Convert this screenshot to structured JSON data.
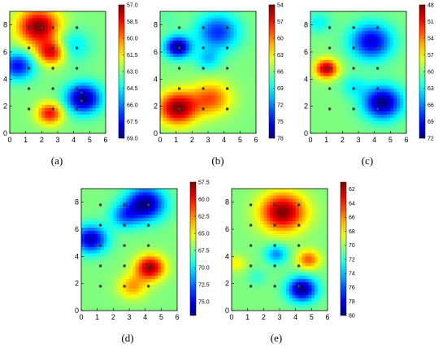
{
  "chart_data": [
    {
      "type": "heatmap",
      "label": "(a)",
      "xlim": [
        0,
        6
      ],
      "ylim": [
        0,
        9
      ],
      "xticks": [
        "0",
        "1",
        "2",
        "3",
        "4",
        "5",
        "6"
      ],
      "yticks": [
        "0",
        "2",
        "4",
        "6",
        "8"
      ],
      "colorbar_ticks": [
        "57.0",
        "58.5",
        "60.0",
        "61.5",
        "63.0",
        "64.5",
        "66.0",
        "67.5",
        "69.0"
      ],
      "colorbar_range": [
        57.0,
        69.0
      ],
      "colormap_reversed": true,
      "sensor_points": [
        [
          1.2,
          7.8
        ],
        [
          2.0,
          7.8
        ],
        [
          2.7,
          7.8
        ],
        [
          4.2,
          7.8
        ],
        [
          1.2,
          6.3
        ],
        [
          2.7,
          6.3
        ],
        [
          4.2,
          6.3
        ],
        [
          1.2,
          4.8
        ],
        [
          2.7,
          4.8
        ],
        [
          4.2,
          4.8
        ],
        [
          1.2,
          3.3
        ],
        [
          2.7,
          3.3
        ],
        [
          4.2,
          3.3
        ],
        [
          1.2,
          1.8
        ],
        [
          2.7,
          1.8
        ],
        [
          4.2,
          1.8
        ],
        [
          4.5,
          2.4
        ],
        [
          4.5,
          3.0
        ]
      ],
      "features": [
        {
          "x": 1.8,
          "y": 7.9,
          "value": 57.0,
          "radius": 1.3
        },
        {
          "x": 2.6,
          "y": 6.0,
          "value": 58.0,
          "radius": 0.9
        },
        {
          "x": 2.5,
          "y": 1.5,
          "value": 58.5,
          "radius": 0.8
        },
        {
          "x": 4.6,
          "y": 2.6,
          "value": 69.0,
          "radius": 1.1
        },
        {
          "x": 0.5,
          "y": 5.0,
          "value": 67.5,
          "radius": 1.0
        },
        {
          "x": 3.8,
          "y": 6.5,
          "value": 65.0,
          "radius": 1.2
        }
      ]
    },
    {
      "type": "heatmap",
      "label": "(b)",
      "xlim": [
        0,
        6
      ],
      "ylim": [
        0,
        9
      ],
      "xticks": [
        "0",
        "1",
        "2",
        "3",
        "4",
        "5",
        "6"
      ],
      "yticks": [
        "0",
        "2",
        "4",
        "6",
        "8"
      ],
      "colorbar_ticks": [
        "54",
        "57",
        "60",
        "63",
        "66",
        "69",
        "72",
        "75",
        "78"
      ],
      "colorbar_range": [
        54,
        78
      ],
      "colormap_reversed": true,
      "sensor_points": [
        [
          1.2,
          7.8
        ],
        [
          2.7,
          7.8
        ],
        [
          4.2,
          7.8
        ],
        [
          1.2,
          6.3
        ],
        [
          2.7,
          6.3
        ],
        [
          4.2,
          6.3
        ],
        [
          1.2,
          4.8
        ],
        [
          2.7,
          4.8
        ],
        [
          4.2,
          4.8
        ],
        [
          1.2,
          3.3
        ],
        [
          2.7,
          3.3
        ],
        [
          4.2,
          3.3
        ],
        [
          1.2,
          1.8
        ],
        [
          2.7,
          1.8
        ],
        [
          4.2,
          1.8
        ]
      ],
      "features": [
        {
          "x": 1.1,
          "y": 1.9,
          "value": 54,
          "radius": 1.2
        },
        {
          "x": 3.2,
          "y": 2.6,
          "value": 59,
          "radius": 1.2
        },
        {
          "x": 1.1,
          "y": 6.4,
          "value": 78,
          "radius": 0.8
        },
        {
          "x": 3.6,
          "y": 7.5,
          "value": 74,
          "radius": 1.3
        },
        {
          "x": 3.0,
          "y": 5.5,
          "value": 70,
          "radius": 0.8
        },
        {
          "x": 0.5,
          "y": 8.5,
          "value": 67,
          "radius": 0.7
        }
      ]
    },
    {
      "type": "heatmap",
      "label": "(c)",
      "xlim": [
        0,
        6
      ],
      "ylim": [
        0,
        9
      ],
      "xticks": [
        "0",
        "1",
        "2",
        "3",
        "4",
        "5",
        "6"
      ],
      "yticks": [
        "0",
        "2",
        "4",
        "6",
        "8"
      ],
      "colorbar_ticks": [
        "48",
        "51",
        "54",
        "57",
        "60",
        "63",
        "66",
        "69",
        "72"
      ],
      "colorbar_range": [
        48,
        72
      ],
      "colormap_reversed": true,
      "sensor_points": [
        [
          1.2,
          7.8
        ],
        [
          2.7,
          7.8
        ],
        [
          4.2,
          7.8
        ],
        [
          1.2,
          6.3
        ],
        [
          2.7,
          6.3
        ],
        [
          4.2,
          6.3
        ],
        [
          1.2,
          4.8
        ],
        [
          2.7,
          4.8
        ],
        [
          4.2,
          4.8
        ],
        [
          1.2,
          3.3
        ],
        [
          2.7,
          3.3
        ],
        [
          4.2,
          3.3
        ],
        [
          1.2,
          1.8
        ],
        [
          2.7,
          1.8
        ],
        [
          4.2,
          1.8
        ]
      ],
      "features": [
        {
          "x": 1.0,
          "y": 4.8,
          "value": 49,
          "radius": 0.7
        },
        {
          "x": 4.5,
          "y": 2.3,
          "value": 72,
          "radius": 1.2
        },
        {
          "x": 3.8,
          "y": 6.8,
          "value": 70,
          "radius": 1.3
        },
        {
          "x": 0.5,
          "y": 8.2,
          "value": 63,
          "radius": 0.8
        },
        {
          "x": 2.7,
          "y": 3.5,
          "value": 63,
          "radius": 0.8
        }
      ]
    },
    {
      "type": "heatmap",
      "label": "(d)",
      "xlim": [
        0,
        6
      ],
      "ylim": [
        0,
        9
      ],
      "xticks": [
        "0",
        "1",
        "2",
        "3",
        "4",
        "5",
        "6"
      ],
      "yticks": [
        "0",
        "2",
        "4",
        "6",
        "8"
      ],
      "colorbar_ticks": [
        "57.5",
        "60.0",
        "62.5",
        "65.0",
        "67.5",
        "70.0",
        "72.5",
        "75.0"
      ],
      "colorbar_range": [
        57.5,
        77.0
      ],
      "colormap_reversed": true,
      "sensor_points": [
        [
          1.2,
          7.8
        ],
        [
          2.7,
          7.8
        ],
        [
          4.2,
          7.8
        ],
        [
          1.2,
          6.3
        ],
        [
          2.7,
          6.3
        ],
        [
          4.2,
          6.3
        ],
        [
          1.2,
          4.8
        ],
        [
          2.7,
          4.8
        ],
        [
          4.2,
          4.8
        ],
        [
          1.2,
          3.3
        ],
        [
          2.7,
          3.3
        ],
        [
          4.2,
          3.3
        ],
        [
          1.2,
          1.8
        ],
        [
          2.7,
          1.8
        ],
        [
          4.2,
          1.8
        ]
      ],
      "features": [
        {
          "x": 4.3,
          "y": 3.2,
          "value": 58,
          "radius": 0.9
        },
        {
          "x": 3.2,
          "y": 1.8,
          "value": 63,
          "radius": 0.9
        },
        {
          "x": 4.0,
          "y": 7.9,
          "value": 77,
          "radius": 1.2
        },
        {
          "x": 0.6,
          "y": 5.3,
          "value": 76,
          "radius": 1.0
        },
        {
          "x": 2.7,
          "y": 7.0,
          "value": 72,
          "radius": 0.9
        }
      ]
    },
    {
      "type": "heatmap",
      "label": "(e)",
      "xlim": [
        0,
        6
      ],
      "ylim": [
        0,
        9
      ],
      "xticks": [
        "0",
        "1",
        "2",
        "3",
        "4",
        "5",
        "6"
      ],
      "yticks": [
        "0",
        "2",
        "4",
        "6",
        "8"
      ],
      "colorbar_ticks": [
        "62",
        "64",
        "66",
        "68",
        "70",
        "72",
        "74",
        "76",
        "78",
        "80"
      ],
      "colorbar_range": [
        61,
        80
      ],
      "colormap_reversed": true,
      "sensor_points": [
        [
          1.2,
          7.8
        ],
        [
          2.7,
          7.8
        ],
        [
          4.2,
          7.8
        ],
        [
          1.2,
          6.3
        ],
        [
          2.7,
          6.3
        ],
        [
          4.2,
          6.3
        ],
        [
          1.2,
          4.8
        ],
        [
          2.7,
          4.8
        ],
        [
          4.2,
          4.8
        ],
        [
          1.2,
          3.3
        ],
        [
          2.7,
          3.3
        ],
        [
          4.2,
          3.3
        ],
        [
          1.2,
          1.8
        ],
        [
          2.7,
          1.8
        ],
        [
          4.2,
          1.8
        ]
      ],
      "features": [
        {
          "x": 3.2,
          "y": 7.3,
          "value": 61,
          "radius": 1.4
        },
        {
          "x": 4.4,
          "y": 1.6,
          "value": 80,
          "radius": 0.9
        },
        {
          "x": 2.8,
          "y": 4.2,
          "value": 75,
          "radius": 0.7
        },
        {
          "x": 4.8,
          "y": 3.8,
          "value": 65,
          "radius": 0.7
        },
        {
          "x": 0.3,
          "y": 3.5,
          "value": 68,
          "radius": 0.6
        },
        {
          "x": 1.6,
          "y": 2.5,
          "value": 72,
          "radius": 0.6
        }
      ]
    }
  ]
}
